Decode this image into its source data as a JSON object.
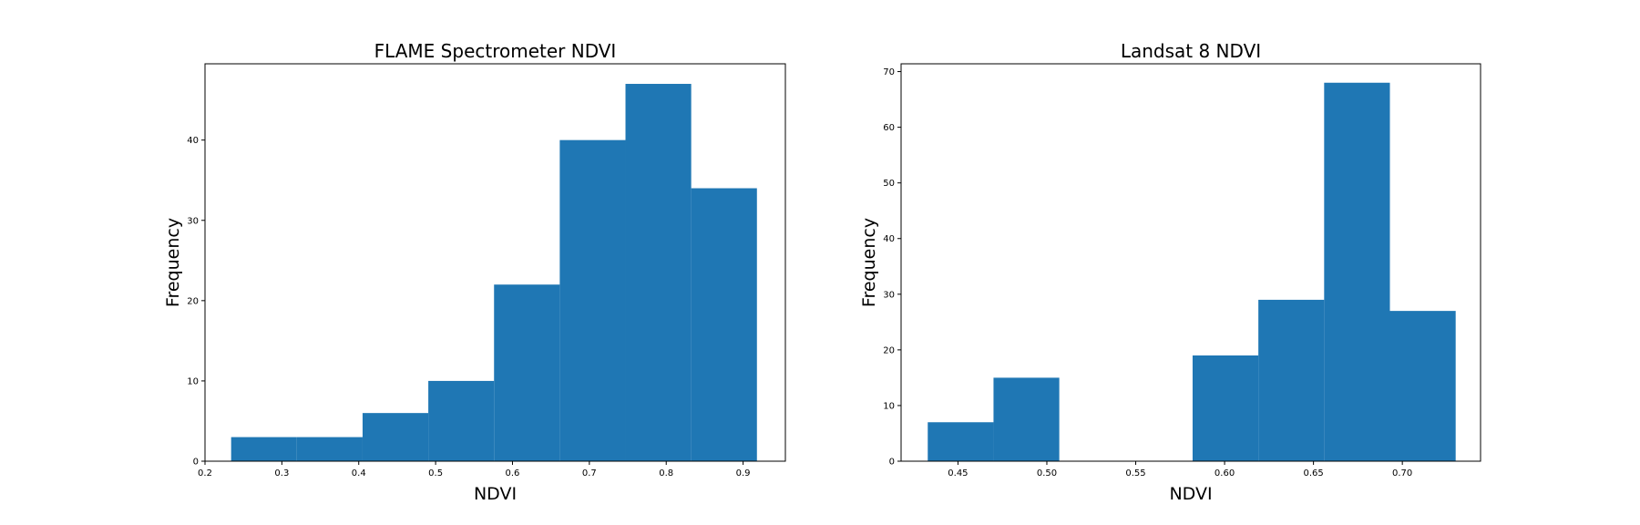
{
  "colors": {
    "bar": "#1f77b4",
    "axis": "#000000",
    "background": "#ffffff"
  },
  "chart_data": [
    {
      "type": "bar",
      "histogram": true,
      "title": "FLAME Spectrometer NDVI",
      "xlabel": "NDVI",
      "ylabel": "Frequency",
      "xlim": [
        0.2,
        0.955
      ],
      "ylim": [
        0,
        49.5
      ],
      "xticks": [
        0.2,
        0.3,
        0.4,
        0.5,
        0.6,
        0.7,
        0.8,
        0.9
      ],
      "xtick_labels": [
        "0.2",
        "0.3",
        "0.4",
        "0.5",
        "0.6",
        "0.7",
        "0.8",
        "0.9"
      ],
      "yticks": [
        0,
        10,
        20,
        30,
        40
      ],
      "ytick_labels": [
        "0",
        "10",
        "20",
        "30",
        "40"
      ],
      "bin_edges": [
        0.234,
        0.3195,
        0.405,
        0.4905,
        0.576,
        0.6615,
        0.747,
        0.8325,
        0.918
      ],
      "values": [
        3,
        3,
        6,
        10,
        22,
        40,
        47,
        34
      ],
      "grid": false,
      "legend": "none"
    },
    {
      "type": "bar",
      "histogram": true,
      "title": "Landsat 8 NDVI",
      "xlabel": "NDVI",
      "ylabel": "Frequency",
      "xlim": [
        0.418,
        0.744
      ],
      "ylim": [
        0,
        71.4
      ],
      "xticks": [
        0.45,
        0.5,
        0.55,
        0.6,
        0.65,
        0.7
      ],
      "xtick_labels": [
        "0.45",
        "0.50",
        "0.55",
        "0.60",
        "0.65",
        "0.70"
      ],
      "yticks": [
        0,
        10,
        20,
        30,
        40,
        50,
        60,
        70
      ],
      "ytick_labels": [
        "0",
        "10",
        "20",
        "30",
        "40",
        "50",
        "60",
        "70"
      ],
      "bin_edges": [
        0.433,
        0.47,
        0.507,
        0.545,
        0.582,
        0.619,
        0.656,
        0.693,
        0.73
      ],
      "values": [
        7,
        15,
        0,
        0,
        19,
        29,
        68,
        27
      ],
      "grid": false,
      "legend": "none"
    }
  ]
}
